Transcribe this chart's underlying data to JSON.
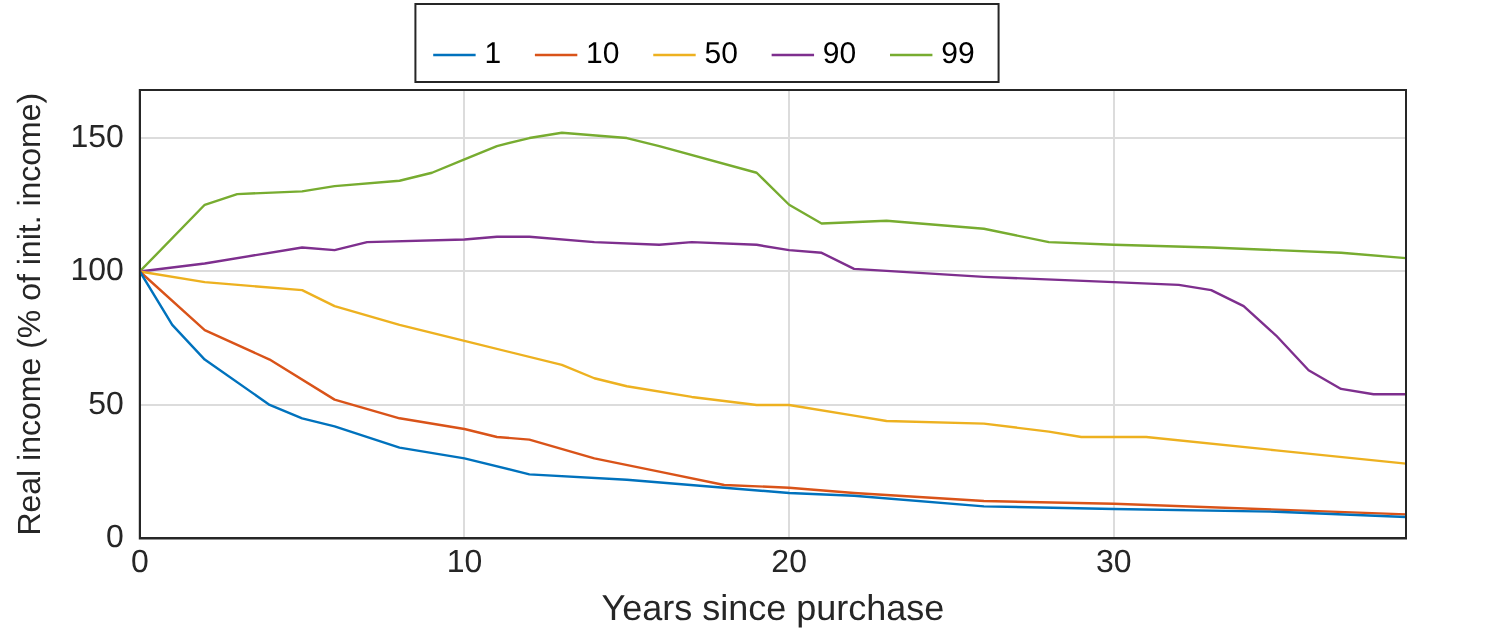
{
  "chart_data": {
    "type": "line",
    "xlabel": "Years since purchase",
    "ylabel": "Real income (% of init. income)",
    "xlim": [
      0,
      39
    ],
    "xticks": [
      0,
      10,
      20,
      30
    ],
    "ylim": [
      0,
      168
    ],
    "yticks": [
      0,
      50,
      100,
      150
    ],
    "grid": true,
    "legend": "top",
    "marker": "none",
    "line_style": "solid",
    "series": [
      {
        "name": "1",
        "color": "#0072bd",
        "x": [
          0,
          1,
          2,
          4,
          5,
          6,
          8,
          10,
          12,
          15,
          18,
          20,
          22,
          26,
          30,
          35,
          39
        ],
        "values": [
          100,
          80,
          67,
          50,
          45,
          42,
          34,
          30,
          24,
          22,
          19,
          17,
          16,
          12,
          11,
          10,
          8
        ]
      },
      {
        "name": "10",
        "color": "#d95319",
        "x": [
          0,
          2,
          4,
          6,
          8,
          10,
          11,
          12,
          14,
          16,
          18,
          20,
          22,
          26,
          30,
          39
        ],
        "values": [
          100,
          78,
          67,
          52,
          45,
          41,
          38,
          37,
          30,
          25,
          20,
          19,
          17,
          14,
          13,
          9
        ]
      },
      {
        "name": "50",
        "color": "#edb120",
        "x": [
          0,
          2,
          5,
          6,
          8,
          10,
          13,
          14,
          15,
          17,
          19,
          20,
          22,
          23,
          26,
          28,
          29,
          31,
          35,
          39
        ],
        "values": [
          100,
          96,
          93,
          87,
          80,
          74,
          65,
          60,
          57,
          53,
          50,
          50,
          46,
          44,
          43,
          40,
          38,
          38,
          33,
          28
        ]
      },
      {
        "name": "90",
        "color": "#7e2f8e",
        "x": [
          0,
          2,
          5,
          6,
          7,
          10,
          11,
          12,
          14,
          16,
          17,
          19,
          20,
          21,
          22,
          26,
          30,
          32,
          33,
          34,
          35,
          36,
          37,
          38,
          39
        ],
        "values": [
          100,
          103,
          109,
          108,
          111,
          112,
          113,
          113,
          111,
          110,
          111,
          110,
          108,
          107,
          101,
          98,
          96,
          95,
          93,
          87,
          76,
          63,
          56,
          54,
          54
        ]
      },
      {
        "name": "99",
        "color": "#77ac30",
        "x": [
          0,
          2,
          3,
          5,
          6,
          8,
          9,
          10,
          11,
          12,
          13,
          15,
          16,
          19,
          20,
          21,
          23,
          26,
          28,
          30,
          33,
          35,
          37,
          39
        ],
        "values": [
          100,
          125,
          129,
          130,
          132,
          134,
          137,
          142,
          147,
          150,
          152,
          150,
          147,
          137,
          125,
          118,
          119,
          116,
          111,
          110,
          109,
          108,
          107,
          105
        ]
      }
    ]
  }
}
